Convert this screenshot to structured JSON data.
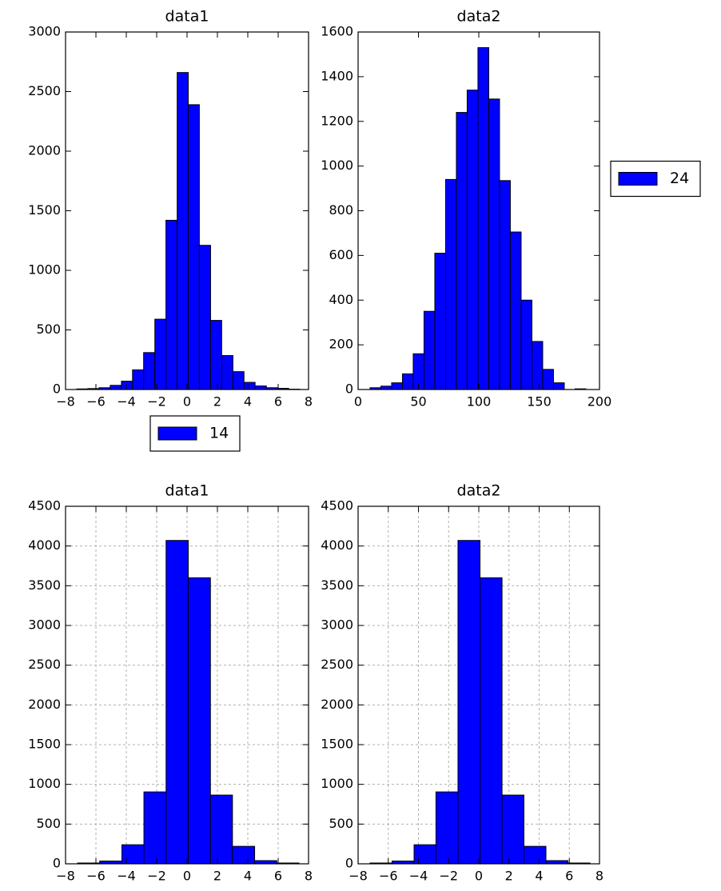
{
  "chart_data": [
    {
      "type": "histogram",
      "title": "data1",
      "bins": [
        -7.26,
        -6.53,
        -5.79,
        -5.06,
        -4.32,
        -3.59,
        -2.86,
        -2.12,
        -1.39,
        -0.65,
        0.08,
        0.81,
        1.55,
        2.28,
        3.02,
        3.75,
        4.48,
        5.22,
        5.95,
        6.69,
        7.42
      ],
      "series": [
        {
          "name": "14",
          "color": "#0000ff",
          "values": [
            5,
            8,
            15,
            35,
            70,
            165,
            310,
            590,
            1420,
            2660,
            2390,
            1210,
            580,
            285,
            150,
            60,
            30,
            15,
            10,
            3
          ]
        }
      ],
      "xlim": [
        -8,
        8
      ],
      "xticks": [
        {
          "value": -8,
          "label": "−8"
        },
        {
          "value": -6,
          "label": "−6"
        },
        {
          "value": -4,
          "label": "−4"
        },
        {
          "value": -2,
          "label": "−2"
        },
        0,
        2,
        4,
        6,
        8
      ],
      "ylim": [
        0,
        3000
      ],
      "yticks": [
        0,
        500,
        1000,
        1500,
        2000,
        2500,
        3000
      ],
      "grid": false,
      "legend": "below"
    },
    {
      "type": "histogram",
      "title": "data2",
      "bins": [
        9.9,
        18.84,
        27.78,
        36.72,
        45.66,
        54.6,
        63.54,
        72.48,
        81.42,
        90.36,
        99.3,
        108.24,
        117.18,
        126.12,
        135.06,
        144.0,
        152.94,
        161.88,
        170.82,
        179.76,
        188.7
      ],
      "series": [
        {
          "name": "24",
          "color": "#0000ff",
          "values": [
            8,
            15,
            30,
            70,
            160,
            350,
            610,
            940,
            1240,
            1340,
            1530,
            1300,
            935,
            705,
            400,
            215,
            90,
            30,
            0,
            3
          ]
        }
      ],
      "xlim": [
        0,
        200
      ],
      "xticks": [
        0,
        50,
        100,
        150,
        200
      ],
      "ylim": [
        0,
        1600
      ],
      "yticks": [
        0,
        200,
        400,
        600,
        800,
        1000,
        1200,
        1400,
        1600
      ],
      "grid": false,
      "legend": "right"
    },
    {
      "type": "histogram",
      "title": "data1",
      "bins": [
        -7.21,
        -5.75,
        -4.29,
        -2.84,
        -1.38,
        0.08,
        1.54,
        2.99,
        4.45,
        5.91,
        7.37
      ],
      "series": [
        {
          "color": "#0000ff",
          "values": [
            10,
            35,
            240,
            905,
            4070,
            3600,
            865,
            220,
            40,
            10
          ]
        }
      ],
      "xlim": [
        -8,
        8
      ],
      "xticks": [
        {
          "value": -8,
          "label": "−8"
        },
        {
          "value": -6,
          "label": "−6"
        },
        {
          "value": -4,
          "label": "−4"
        },
        {
          "value": -2,
          "label": "−2"
        },
        0,
        2,
        4,
        6,
        8
      ],
      "ylim": [
        0,
        4500
      ],
      "yticks": [
        0,
        500,
        1000,
        1500,
        2000,
        2500,
        3000,
        3500,
        4000,
        4500
      ],
      "grid": true
    },
    {
      "type": "histogram",
      "title": "data2",
      "bins": [
        -7.21,
        -5.75,
        -4.29,
        -2.84,
        -1.38,
        0.08,
        1.54,
        2.99,
        4.45,
        5.91,
        7.37
      ],
      "series": [
        {
          "color": "#0000ff",
          "values": [
            10,
            35,
            240,
            905,
            4070,
            3600,
            865,
            220,
            40,
            10
          ]
        }
      ],
      "xlim": [
        -8,
        8
      ],
      "xticks": [
        {
          "value": -8,
          "label": "−8"
        },
        {
          "value": -6,
          "label": "−6"
        },
        {
          "value": -4,
          "label": "−4"
        },
        {
          "value": -2,
          "label": "−2"
        },
        0,
        2,
        4,
        6,
        8
      ],
      "ylim": [
        0,
        4500
      ],
      "yticks": [
        0,
        500,
        1000,
        1500,
        2000,
        2500,
        3000,
        3500,
        4000,
        4500
      ],
      "grid": true
    }
  ]
}
